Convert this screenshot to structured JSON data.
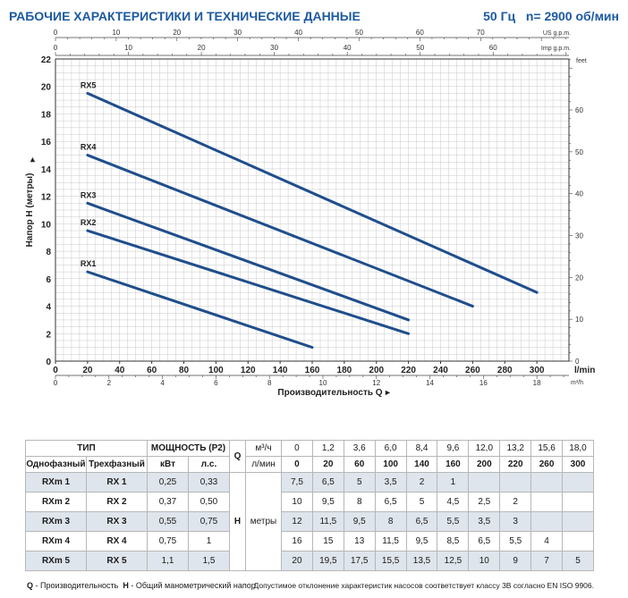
{
  "header": {
    "title": "РАБОЧИЕ ХАРАКТЕРИСТИКИ И ТЕХНИЧЕСКИЕ ДАННЫЕ",
    "frequency": "50 Гц",
    "speed": "n= 2900 об/мин"
  },
  "chart_data": {
    "type": "line",
    "ylabel": "Напор H (метры)",
    "xlabel": "Производительность Q",
    "x_unit": "l/min",
    "xlim": [
      0,
      320
    ],
    "ylim": [
      0,
      22
    ],
    "x_ticks": [
      "0",
      "20",
      "40",
      "60",
      "80",
      "100",
      "120",
      "140",
      "160",
      "180",
      "200",
      "220",
      "240",
      "260",
      "280",
      "300"
    ],
    "y_ticks": [
      "0",
      "2",
      "4",
      "6",
      "8",
      "10",
      "12",
      "14",
      "16",
      "18",
      "20",
      "22"
    ],
    "top_axis_us": {
      "unit": "US g.p.m.",
      "ticks": [
        "0",
        "10",
        "20",
        "30",
        "40",
        "50",
        "60",
        "70"
      ]
    },
    "top_axis_imp": {
      "unit": "Imp g.p.m.",
      "ticks": [
        "0",
        "10",
        "20",
        "30",
        "40",
        "50",
        "60"
      ]
    },
    "right_axis": {
      "unit": "feet",
      "ticks": [
        "0",
        "10",
        "20",
        "30",
        "40",
        "50",
        "60"
      ]
    },
    "bottom_axis_m3h": {
      "unit": "m³/h",
      "ticks": [
        "0",
        "2",
        "4",
        "6",
        "8",
        "10",
        "12",
        "14",
        "16",
        "18"
      ]
    },
    "grid": true,
    "series": [
      {
        "name": "RX1",
        "x": [
          20,
          160
        ],
        "y": [
          6.5,
          1.0
        ]
      },
      {
        "name": "RX2",
        "x": [
          20,
          220
        ],
        "y": [
          9.5,
          2.0
        ]
      },
      {
        "name": "RX3",
        "x": [
          20,
          220
        ],
        "y": [
          11.5,
          3.0
        ]
      },
      {
        "name": "RX4",
        "x": [
          20,
          260
        ],
        "y": [
          15.0,
          4.0
        ]
      },
      {
        "name": "RX5",
        "x": [
          20,
          300
        ],
        "y": [
          19.5,
          5.0
        ]
      }
    ]
  },
  "table": {
    "type_header": "ТИП",
    "power_header": "МОЩНОСТЬ (P2)",
    "single_phase": "Однофазный",
    "three_phase": "Трехфазный",
    "kw": "кВт",
    "hp": "л.с.",
    "q_symbol": "Q",
    "q_unit_m3": "м³/ч",
    "q_unit_l": "л/мин",
    "q_m3": [
      "0",
      "1,2",
      "3,6",
      "6,0",
      "8,4",
      "9,6",
      "12,0",
      "13,2",
      "15,6",
      "18,0"
    ],
    "q_l": [
      "0",
      "20",
      "60",
      "100",
      "140",
      "160",
      "200",
      "220",
      "260",
      "300"
    ],
    "h_label": "H",
    "h_unit": "метры",
    "rows": [
      {
        "single": "RXm 1",
        "three": "RX 1",
        "kw": "0,25",
        "hp": "0,33",
        "h": [
          "7,5",
          "6,5",
          "5",
          "3,5",
          "2",
          "1",
          "",
          "",
          "",
          ""
        ]
      },
      {
        "single": "RXm 2",
        "three": "RX 2",
        "kw": "0,37",
        "hp": "0,50",
        "h": [
          "10",
          "9,5",
          "8",
          "6,5",
          "5",
          "4,5",
          "2,5",
          "2",
          "",
          ""
        ]
      },
      {
        "single": "RXm 3",
        "three": "RX 3",
        "kw": "0,55",
        "hp": "0,75",
        "h": [
          "12",
          "11,5",
          "9,5",
          "8",
          "6,5",
          "5,5",
          "3,5",
          "3",
          "",
          ""
        ]
      },
      {
        "single": "RXm 4",
        "three": "RX 4",
        "kw": "0,75",
        "hp": "1",
        "h": [
          "16",
          "15",
          "13",
          "11,5",
          "9,5",
          "8,5",
          "6,5",
          "5,5",
          "4",
          ""
        ]
      },
      {
        "single": "RXm 5",
        "three": "RX 5",
        "kw": "1,1",
        "hp": "1,5",
        "h": [
          "20",
          "19,5",
          "17,5",
          "15,5",
          "13,5",
          "12,5",
          "10",
          "9",
          "7",
          "5"
        ]
      }
    ]
  },
  "footer": {
    "q_symbol": "Q",
    "q_text": " - Производительность",
    "h_symbol": "H",
    "h_text": " - Общий манометрический напор",
    "tolerance": "Допустимое отклонение характеристик насосов соответствует классу 3B согласно EN ISO 9906."
  },
  "colors": {
    "curve": "#1f4e8c",
    "title": "#1d5aa0",
    "grid": "#c8c8c8",
    "shade": "#dfe5ec"
  }
}
